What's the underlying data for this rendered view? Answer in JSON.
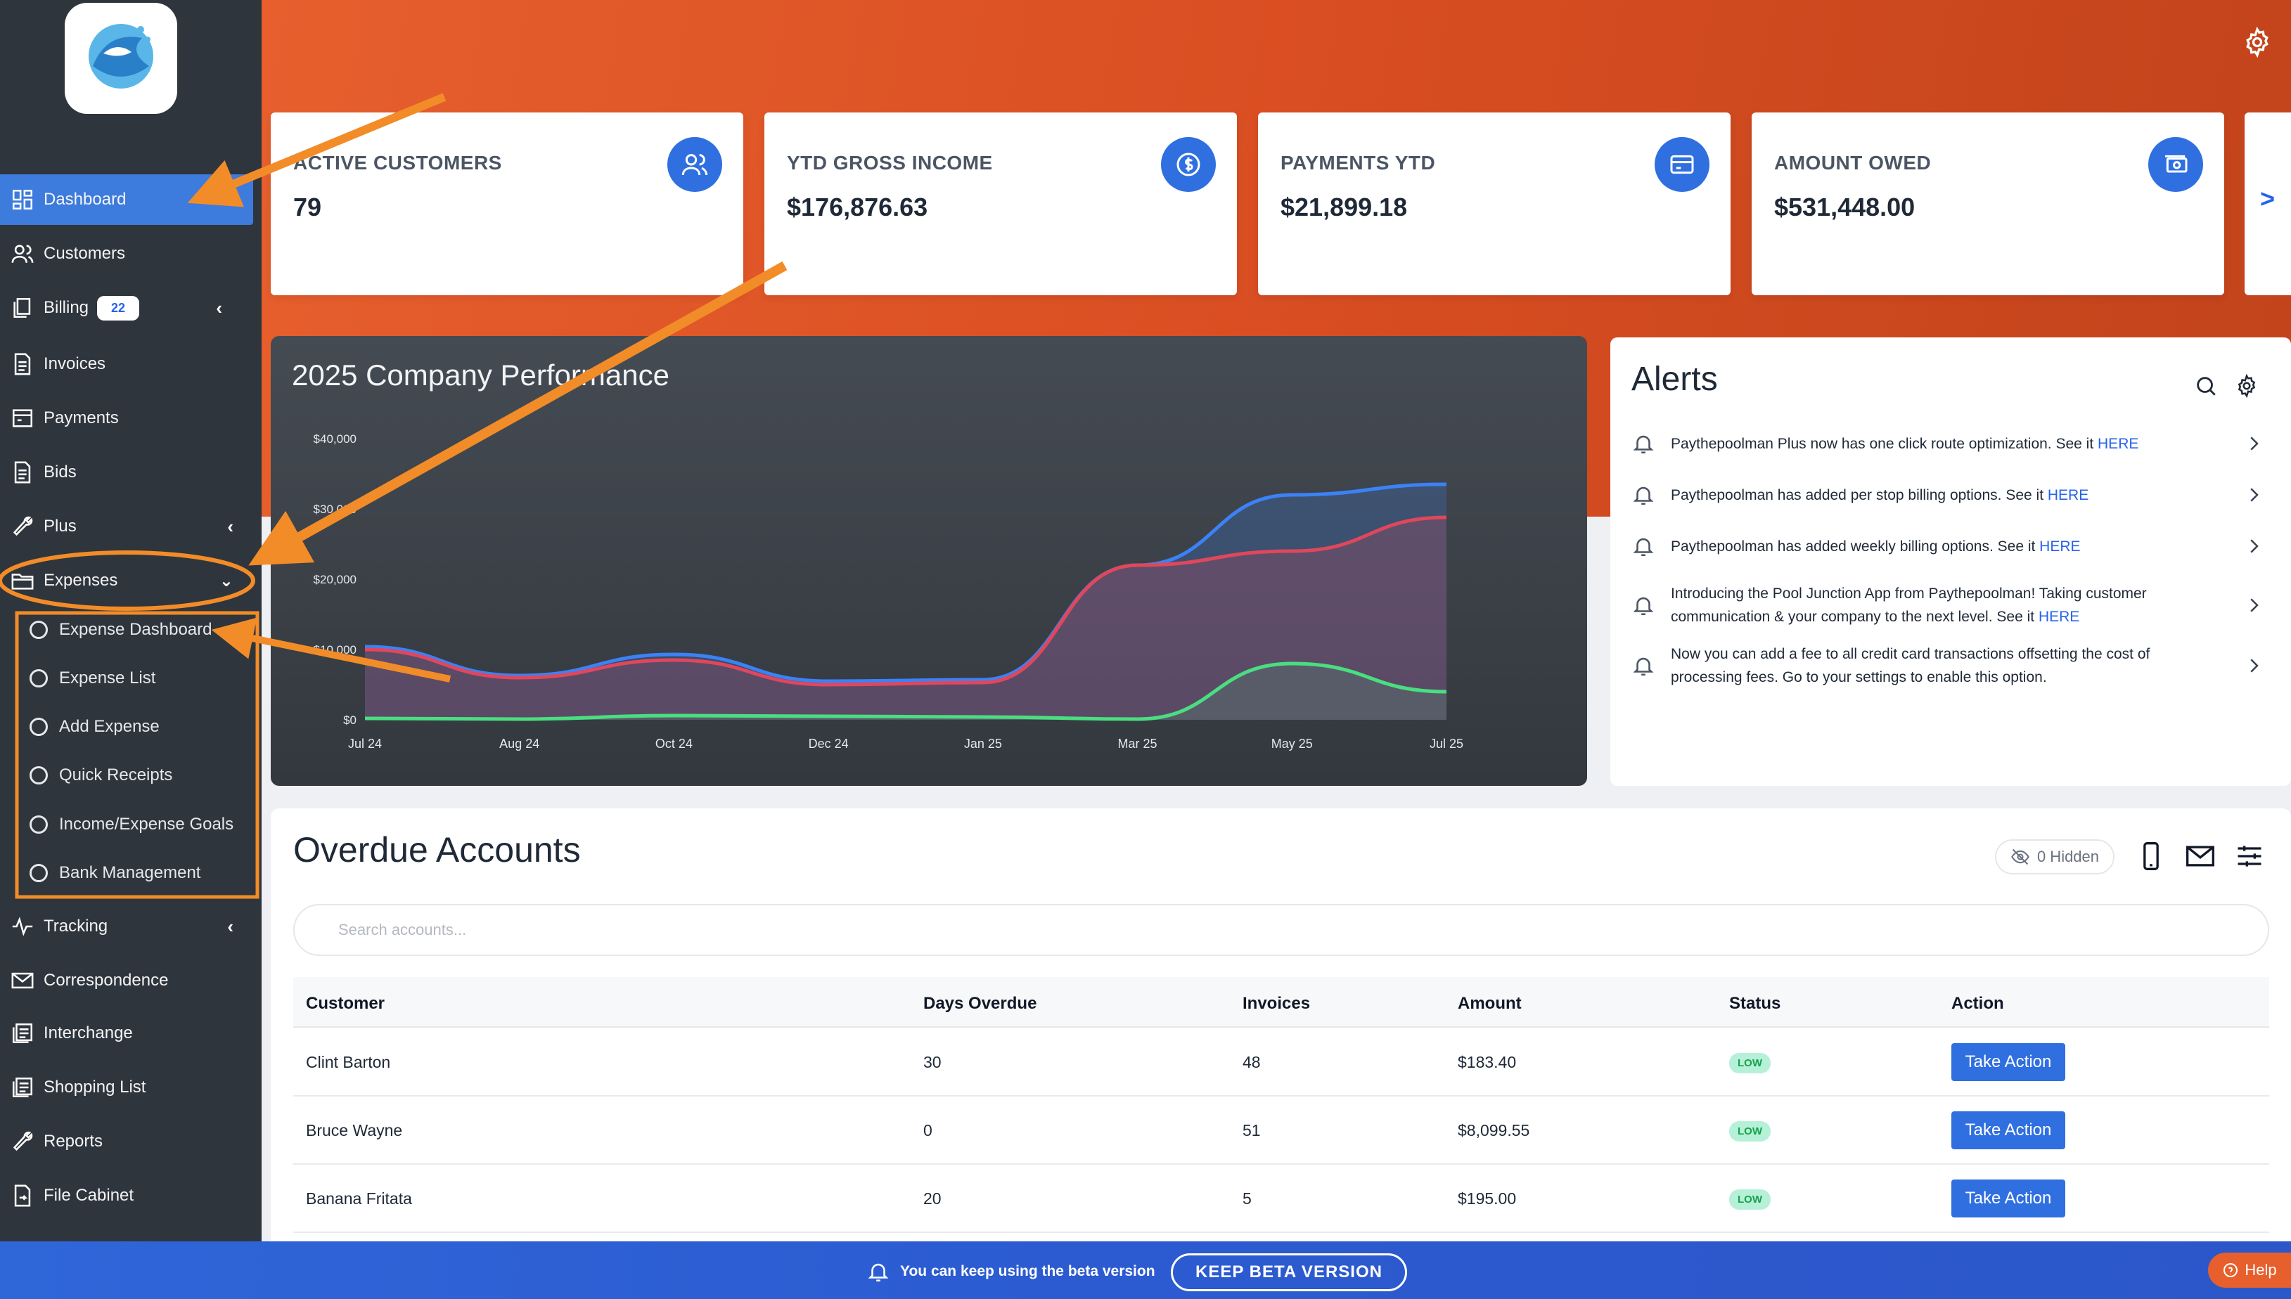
{
  "brand": {
    "logo_alt": "Paythepoolman"
  },
  "sidebar": {
    "items": [
      {
        "label": "Dashboard",
        "icon": "dashboard-icon"
      },
      {
        "label": "Customers",
        "icon": "users-icon"
      },
      {
        "label": "Billing",
        "icon": "billing-icon",
        "badge": "22"
      },
      {
        "label": "Invoices",
        "icon": "invoice-icon"
      },
      {
        "label": "Payments",
        "icon": "payments-icon"
      },
      {
        "label": "Bids",
        "icon": "bids-icon"
      },
      {
        "label": "Plus",
        "icon": "wrench-icon"
      },
      {
        "label": "Expenses",
        "icon": "folder-icon"
      },
      {
        "label": "Tracking",
        "icon": "pulse-icon"
      },
      {
        "label": "Correspondence",
        "icon": "mail-icon"
      },
      {
        "label": "Interchange",
        "icon": "interchange-icon"
      },
      {
        "label": "Shopping List",
        "icon": "list-icon"
      },
      {
        "label": "Reports",
        "icon": "wrench-icon"
      },
      {
        "label": "File Cabinet",
        "icon": "file-icon"
      }
    ],
    "expenses_sub": [
      "Expense Dashboard",
      "Expense List",
      "Add Expense",
      "Quick Receipts",
      "Income/Expense Goals",
      "Bank Management"
    ]
  },
  "cards": [
    {
      "title": "ACTIVE CUSTOMERS",
      "value": "79",
      "icon": "users-icon"
    },
    {
      "title": "YTD GROSS INCOME",
      "value": "$176,876.63",
      "icon": "dollar-icon"
    },
    {
      "title": "PAYMENTS YTD",
      "value": "$21,899.18",
      "icon": "credit-card-icon"
    },
    {
      "title": "AMOUNT OWED",
      "value": "$531,448.00",
      "icon": "cash-icon"
    }
  ],
  "cards_next": ">",
  "chart_data": {
    "type": "area",
    "title": "2025 Company Performance",
    "x": [
      "Jul 24",
      "Aug 24",
      "Oct 24",
      "Dec 24",
      "Jan 25",
      "Mar 25",
      "May 25",
      "Jul 25"
    ],
    "y_ticks": [
      "$40,000",
      "$30,000",
      "$20,000",
      "$10,000",
      "$0"
    ],
    "ylim": [
      0,
      40000
    ],
    "series": [
      {
        "color": "#3b82f6",
        "values": [
          10400,
          6300,
          9300,
          5500,
          5700,
          22000,
          32000,
          33500
        ]
      },
      {
        "color": "#e0475c",
        "values": [
          10000,
          6000,
          8500,
          5000,
          5300,
          22000,
          24000,
          28800
        ]
      },
      {
        "color": "#4ade80",
        "values": [
          200,
          100,
          600,
          500,
          400,
          100,
          8000,
          4000
        ]
      }
    ],
    "legend": "none",
    "grid": false
  },
  "alerts": {
    "title": "Alerts",
    "items": [
      {
        "text": "Paythepoolman Plus now has one click route optimization. See it ",
        "link": "HERE"
      },
      {
        "text": "Paythepoolman has added per stop billing options. See it ",
        "link": "HERE"
      },
      {
        "text": "Paythepoolman has added weekly billing options. See it ",
        "link": "HERE"
      },
      {
        "text": "Introducing the Pool Junction App from Paythepoolman! Taking customer communication & your company to the next level. See it ",
        "link": "HERE"
      },
      {
        "text": "Now you can add a fee to all credit card transactions offsetting the cost of processing fees. Go to your settings to enable this option.",
        "link": ""
      }
    ]
  },
  "overdue": {
    "title": "Overdue Accounts",
    "hidden_label": "0 Hidden",
    "search_placeholder": "Search accounts...",
    "columns": [
      "Customer",
      "Days Overdue",
      "Invoices",
      "Amount",
      "Status",
      "Action"
    ],
    "rows": [
      {
        "customer": "Clint Barton",
        "days": "30",
        "invoices": "48",
        "amount": "$183.40",
        "status": "LOW",
        "action": "Take Action"
      },
      {
        "customer": "Bruce Wayne",
        "days": "0",
        "invoices": "51",
        "amount": "$8,099.55",
        "status": "LOW",
        "action": "Take Action"
      },
      {
        "customer": "Banana Fritata",
        "days": "20",
        "invoices": "5",
        "amount": "$195.00",
        "status": "LOW",
        "action": "Take Action"
      }
    ]
  },
  "beta": {
    "message": "You can keep using the beta version",
    "button": "KEEP BETA VERSION",
    "help": "Help"
  },
  "colors": {
    "accent": "#2f6fe0",
    "hero": "#d94e22",
    "sidebar": "#2f353c",
    "annotation": "#f28c28"
  }
}
